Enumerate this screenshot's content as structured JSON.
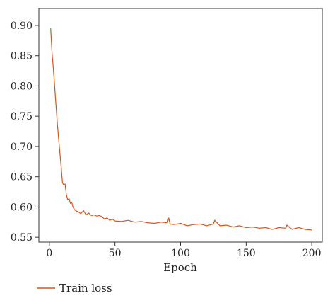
{
  "chart_data": {
    "type": "line",
    "title": "",
    "xlabel": "Epoch",
    "ylabel": "",
    "xlim": [
      -8,
      208
    ],
    "ylim": [
      0.542,
      0.928
    ],
    "x_ticks": [
      0,
      50,
      100,
      150,
      200
    ],
    "x_tick_labels": [
      "0",
      "50",
      "100",
      "150",
      "200"
    ],
    "y_ticks": [
      0.55,
      0.6,
      0.65,
      0.7,
      0.75,
      0.8,
      0.85,
      0.9
    ],
    "y_tick_labels": [
      "0.55",
      "0.60",
      "0.65",
      "0.70",
      "0.75",
      "0.80",
      "0.85",
      "0.90"
    ],
    "grid": false,
    "legend_position": "bottom-left",
    "series": [
      {
        "name": "Train loss",
        "color": "#d9541e",
        "x": [
          1,
          2,
          3,
          4,
          5,
          6,
          7,
          8,
          9,
          10,
          11,
          12,
          13,
          14,
          15,
          16,
          17,
          18,
          19,
          20,
          22,
          24,
          26,
          28,
          30,
          32,
          34,
          36,
          38,
          40,
          42,
          44,
          46,
          48,
          50,
          55,
          60,
          65,
          70,
          75,
          80,
          85,
          90,
          91,
          92,
          95,
          100,
          105,
          110,
          115,
          120,
          125,
          126,
          130,
          135,
          140,
          145,
          150,
          155,
          160,
          165,
          170,
          175,
          180,
          181,
          185,
          190,
          195,
          200
        ],
        "y": [
          0.895,
          0.855,
          0.83,
          0.8,
          0.77,
          0.74,
          0.715,
          0.69,
          0.665,
          0.64,
          0.636,
          0.638,
          0.62,
          0.612,
          0.614,
          0.606,
          0.608,
          0.6,
          0.596,
          0.594,
          0.592,
          0.589,
          0.594,
          0.587,
          0.59,
          0.586,
          0.587,
          0.585,
          0.586,
          0.584,
          0.58,
          0.582,
          0.578,
          0.58,
          0.577,
          0.576,
          0.578,
          0.575,
          0.576,
          0.574,
          0.573,
          0.575,
          0.574,
          0.582,
          0.572,
          0.571,
          0.573,
          0.569,
          0.571,
          0.572,
          0.569,
          0.572,
          0.578,
          0.569,
          0.57,
          0.567,
          0.569,
          0.566,
          0.567,
          0.565,
          0.566,
          0.563,
          0.566,
          0.565,
          0.57,
          0.563,
          0.566,
          0.563,
          0.562
        ]
      }
    ]
  }
}
